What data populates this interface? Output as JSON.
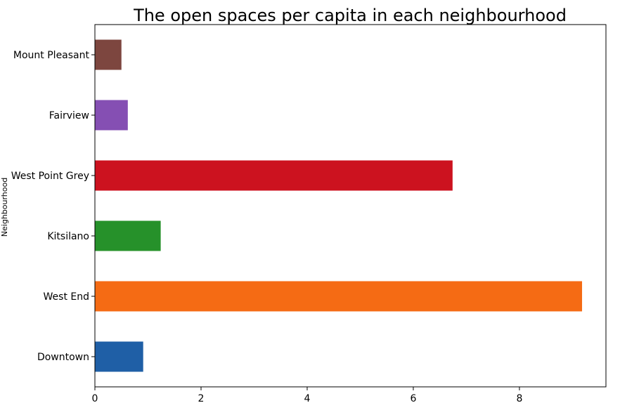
{
  "chart_data": {
    "type": "bar",
    "orientation": "horizontal",
    "title": "The open spaces per capita in each neighbourhood",
    "ylabel": "Neighbourhood",
    "xlabel": "",
    "categories": [
      "Downtown",
      "West End",
      "Kitsilano",
      "West Point Grey",
      "Fairview",
      "Mount Pleasant"
    ],
    "values": [
      0.91,
      9.18,
      1.24,
      6.74,
      0.62,
      0.5
    ],
    "colors": [
      "#1f5fa6",
      "#f56b14",
      "#26912a",
      "#cc121f",
      "#854fb3",
      "#7d463f"
    ],
    "xlim": [
      0,
      9.63
    ],
    "xticks": [
      0,
      2,
      4,
      6,
      8
    ],
    "grid": false,
    "legend": false
  }
}
